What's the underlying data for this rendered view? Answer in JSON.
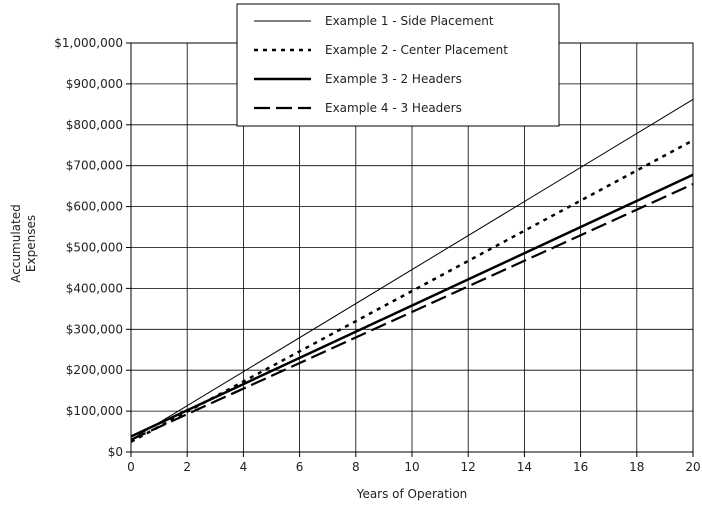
{
  "chart_data": {
    "type": "line",
    "xlabel": "Years of Operation",
    "ylabel_lines": [
      "Accumulated",
      "Expenses"
    ],
    "xlim": [
      0,
      20
    ],
    "ylim": [
      0,
      1000000
    ],
    "x_ticks": [
      "0",
      "2",
      "4",
      "6",
      "8",
      "10",
      "12",
      "14",
      "16",
      "18",
      "20"
    ],
    "y_ticks": [
      "$0",
      "$100,000",
      "$200,000",
      "$300,000",
      "$400,000",
      "$500,000",
      "$600,000",
      "$700,000",
      "$800,000",
      "$900,000",
      "$1,000,000"
    ],
    "grid": true,
    "legend_position": "top-center",
    "series": [
      {
        "name": "Example 1 - Side Placement",
        "style": "thin-solid",
        "x": [
          0,
          20
        ],
        "y": [
          30000,
          862000
        ]
      },
      {
        "name": "Example 2 - Center Placement",
        "style": "dotted",
        "x": [
          0,
          20
        ],
        "y": [
          25000,
          762000
        ]
      },
      {
        "name": "Example 3 - 2 Headers",
        "style": "thick-solid",
        "x": [
          0,
          20
        ],
        "y": [
          38000,
          678000
        ]
      },
      {
        "name": "Example 4 - 3 Headers",
        "style": "dashed",
        "x": [
          0,
          20
        ],
        "y": [
          30000,
          655000
        ]
      }
    ],
    "colors": {
      "line": "#000000",
      "grid": "#000000",
      "background": "#ffffff"
    }
  }
}
